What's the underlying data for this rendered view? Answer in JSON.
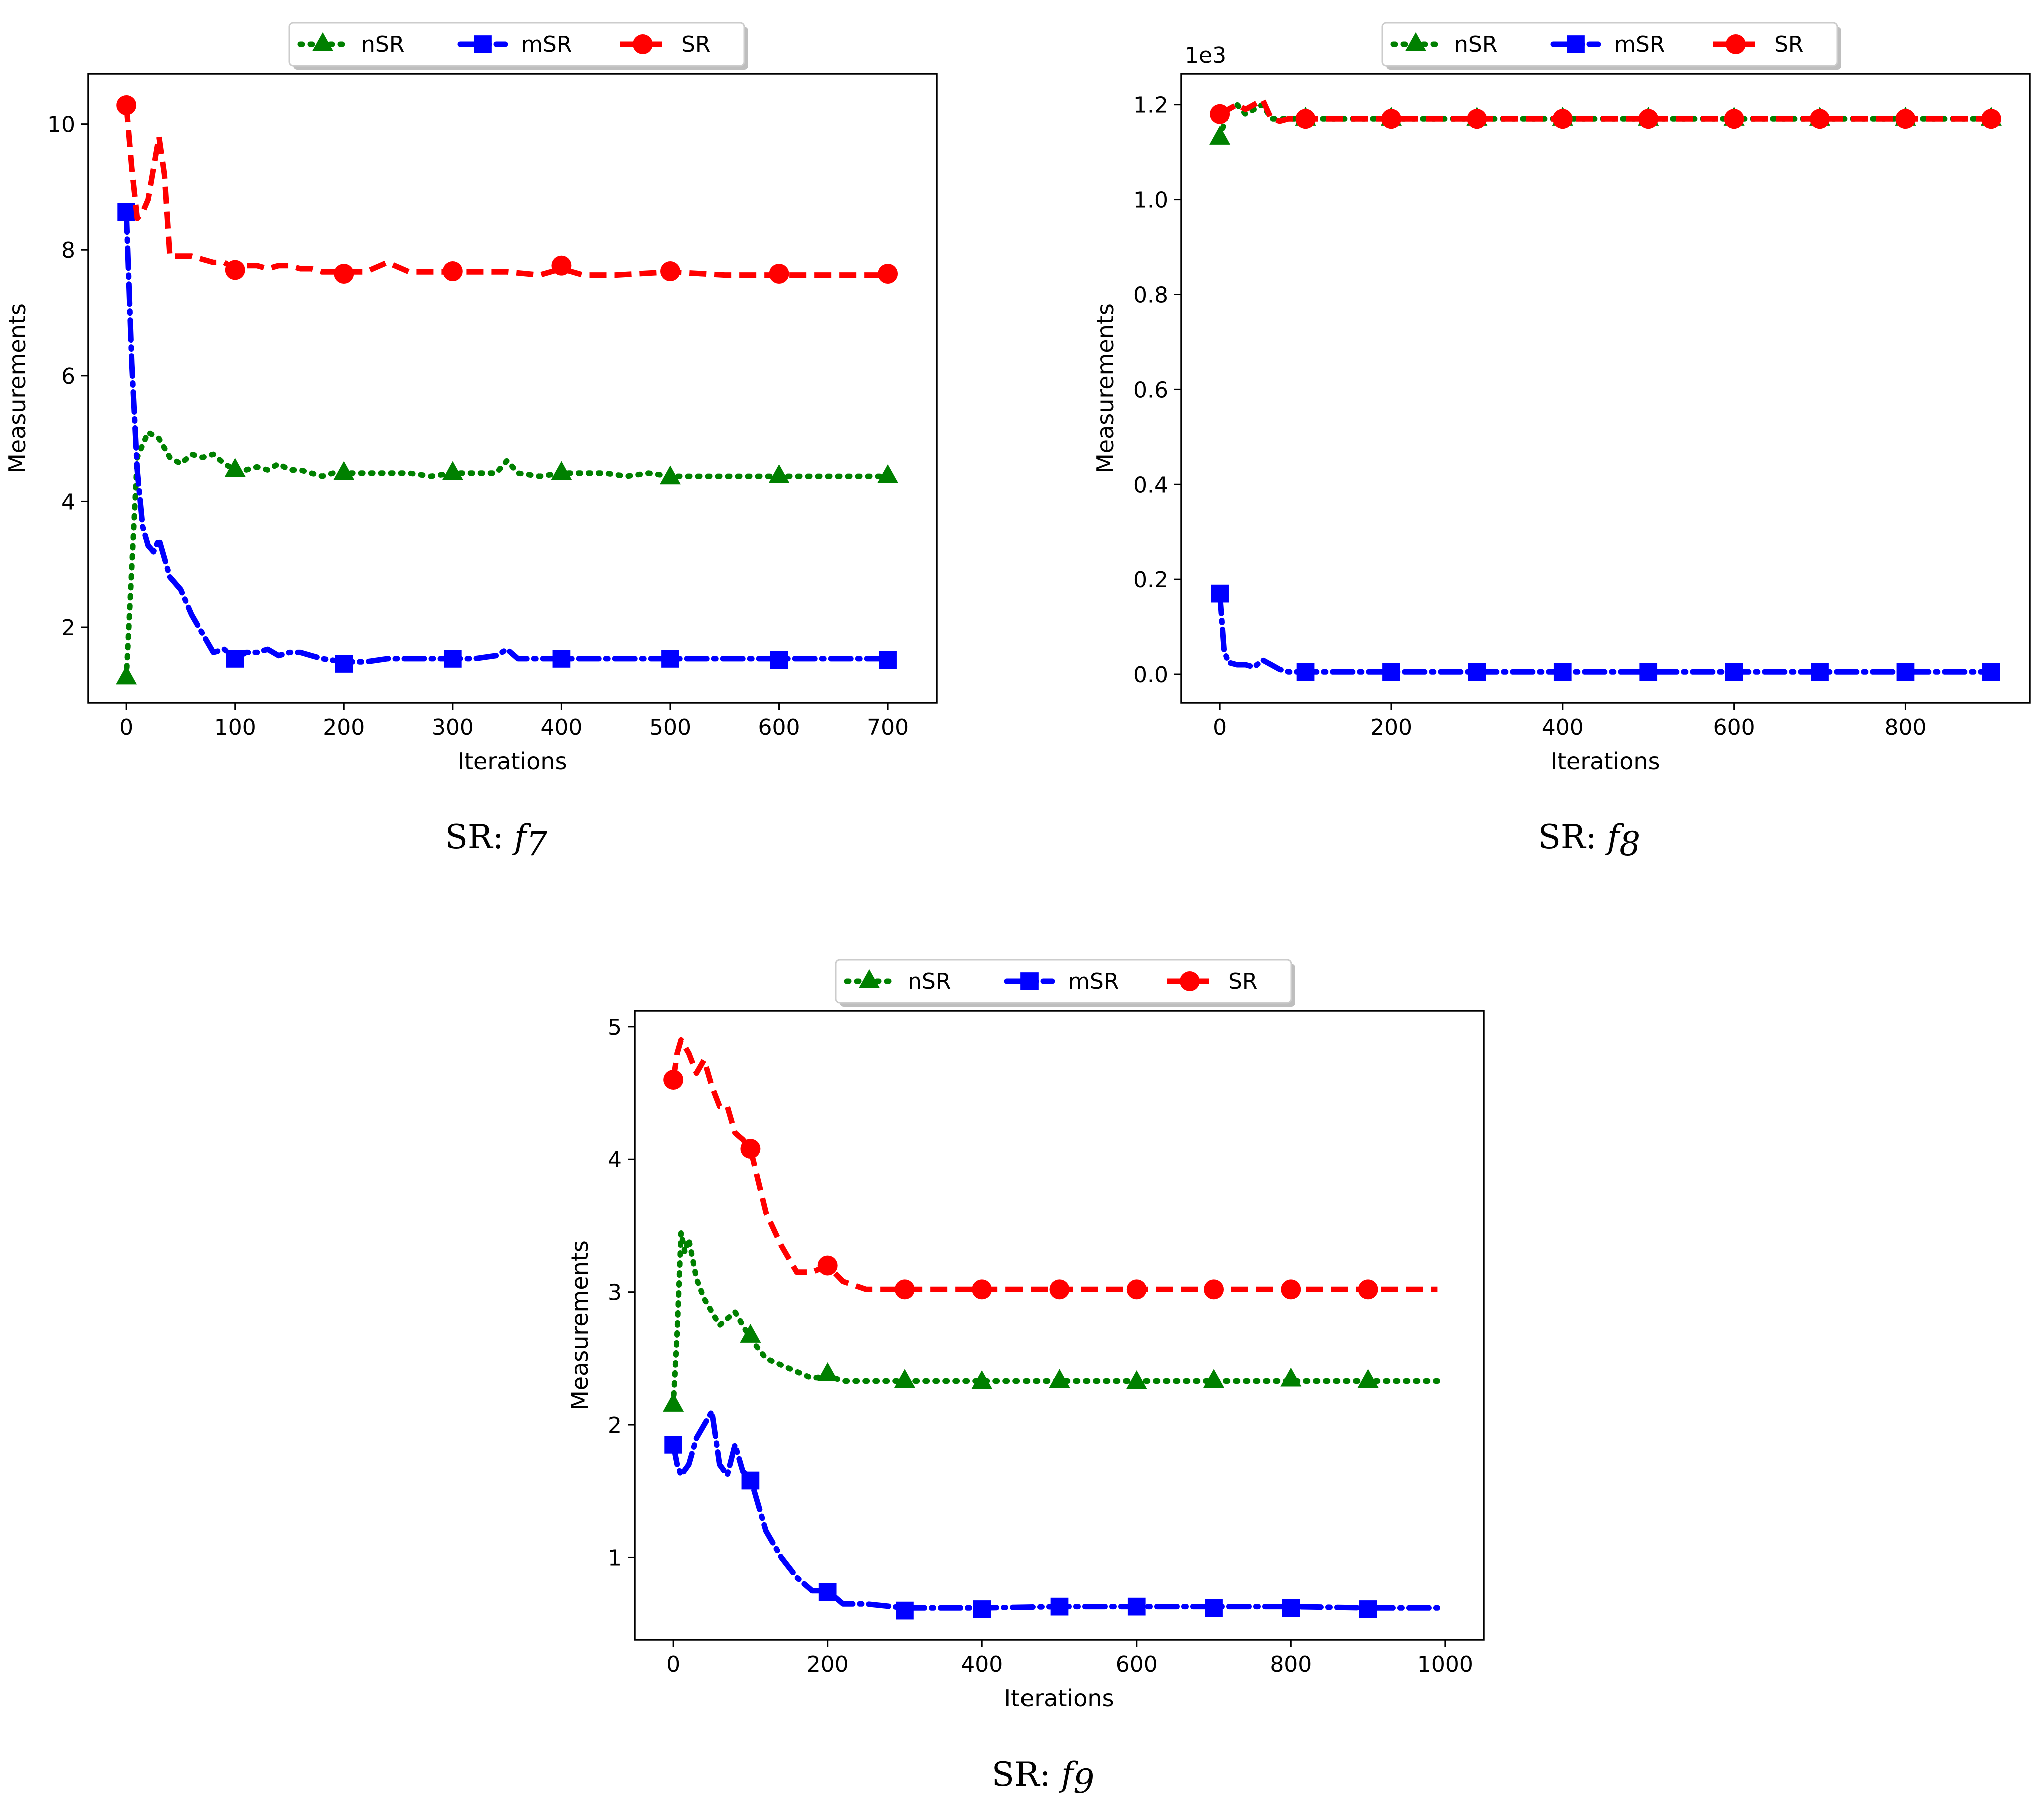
{
  "colors": {
    "nSR": "#008000",
    "mSR": "#0000ff",
    "SR": "#ff0000"
  },
  "chart_data": [
    {
      "type": "line",
      "caption_prefix": "SR: ",
      "caption_func": "f",
      "caption_sub": "7",
      "xlabel": "Iterations",
      "ylabel": "Measurements",
      "xlim": [
        -35,
        745
      ],
      "ylim": [
        0.8,
        10.8
      ],
      "xticks": [
        0,
        100,
        200,
        300,
        400,
        500,
        600,
        700
      ],
      "yticks": [
        2,
        4,
        6,
        8,
        10
      ],
      "ytick_labels": [
        "2",
        "4",
        "6",
        "8",
        "10"
      ],
      "offset_label": "",
      "legend": [
        "nSR",
        "mSR",
        "SR"
      ],
      "legend_position": "top-center",
      "series": [
        {
          "name": "nSR",
          "x": [
            0,
            10,
            20,
            30,
            40,
            50,
            60,
            70,
            80,
            90,
            100,
            110,
            120,
            130,
            140,
            150,
            160,
            170,
            180,
            190,
            200,
            220,
            240,
            260,
            280,
            300,
            320,
            340,
            350,
            360,
            380,
            400,
            420,
            440,
            460,
            480,
            500,
            550,
            600,
            650,
            700
          ],
          "values": [
            1.2,
            4.7,
            5.1,
            5.0,
            4.7,
            4.6,
            4.75,
            4.7,
            4.75,
            4.6,
            4.5,
            4.5,
            4.55,
            4.5,
            4.6,
            4.5,
            4.5,
            4.45,
            4.4,
            4.45,
            4.45,
            4.45,
            4.45,
            4.45,
            4.4,
            4.45,
            4.45,
            4.45,
            4.65,
            4.45,
            4.4,
            4.45,
            4.45,
            4.45,
            4.4,
            4.45,
            4.4,
            4.4,
            4.4,
            4.4,
            4.4
          ],
          "marker_x": [
            0,
            100,
            200,
            300,
            400,
            500,
            600,
            700
          ],
          "marker_values": [
            1.2,
            4.5,
            4.45,
            4.45,
            4.45,
            4.38,
            4.4,
            4.4
          ]
        },
        {
          "name": "mSR",
          "x": [
            0,
            5,
            10,
            15,
            20,
            25,
            30,
            35,
            40,
            50,
            60,
            70,
            80,
            90,
            100,
            110,
            120,
            130,
            140,
            150,
            160,
            170,
            180,
            200,
            220,
            240,
            260,
            280,
            300,
            320,
            340,
            350,
            360,
            400,
            450,
            500,
            550,
            600,
            650,
            700
          ],
          "values": [
            8.6,
            6.2,
            4.5,
            3.6,
            3.3,
            3.2,
            3.4,
            3.1,
            2.8,
            2.6,
            2.2,
            1.9,
            1.6,
            1.65,
            1.5,
            1.6,
            1.6,
            1.65,
            1.55,
            1.6,
            1.6,
            1.55,
            1.5,
            1.45,
            1.45,
            1.5,
            1.5,
            1.5,
            1.5,
            1.5,
            1.55,
            1.65,
            1.5,
            1.5,
            1.5,
            1.5,
            1.5,
            1.5,
            1.5,
            1.5
          ],
          "marker_x": [
            0,
            100,
            200,
            300,
            400,
            500,
            600,
            700
          ],
          "marker_values": [
            8.6,
            1.5,
            1.42,
            1.5,
            1.5,
            1.5,
            1.48,
            1.48
          ]
        },
        {
          "name": "SR",
          "x": [
            0,
            5,
            10,
            15,
            20,
            25,
            30,
            35,
            40,
            50,
            60,
            70,
            80,
            90,
            100,
            110,
            120,
            130,
            140,
            150,
            160,
            170,
            180,
            200,
            220,
            240,
            260,
            280,
            300,
            350,
            380,
            400,
            420,
            450,
            500,
            550,
            600,
            650,
            700
          ],
          "values": [
            10.3,
            9.3,
            8.5,
            8.6,
            8.8,
            9.3,
            9.8,
            9.2,
            7.9,
            7.9,
            7.9,
            7.85,
            7.8,
            7.8,
            7.7,
            7.75,
            7.75,
            7.7,
            7.75,
            7.75,
            7.7,
            7.7,
            7.65,
            7.65,
            7.65,
            7.8,
            7.65,
            7.65,
            7.65,
            7.65,
            7.6,
            7.7,
            7.6,
            7.6,
            7.65,
            7.6,
            7.6,
            7.6,
            7.6
          ],
          "marker_x": [
            0,
            100,
            200,
            300,
            400,
            500,
            600,
            700
          ],
          "marker_values": [
            10.3,
            7.68,
            7.62,
            7.66,
            7.75,
            7.66,
            7.62,
            7.62
          ]
        }
      ]
    },
    {
      "type": "line",
      "caption_prefix": "SR: ",
      "caption_func": "f",
      "caption_sub": "8",
      "xlabel": "Iterations",
      "ylabel": "Measurements",
      "xlim": [
        -45,
        945
      ],
      "ylim": [
        -0.06,
        1.265
      ],
      "xticks": [
        0,
        200,
        400,
        600,
        800
      ],
      "yticks": [
        0.0,
        0.2,
        0.4,
        0.6,
        0.8,
        1.0,
        1.2
      ],
      "ytick_labels": [
        "0.0",
        "0.2",
        "0.4",
        "0.6",
        "0.8",
        "1.0",
        "1.2"
      ],
      "offset_label": "1e3",
      "legend": [
        "nSR",
        "mSR",
        "SR"
      ],
      "legend_position": "top-center",
      "series": [
        {
          "name": "nSR",
          "x": [
            0,
            10,
            20,
            30,
            40,
            50,
            60,
            70,
            80,
            90,
            100,
            200,
            300,
            400,
            500,
            600,
            700,
            800,
            900
          ],
          "values": [
            1.13,
            1.19,
            1.2,
            1.18,
            1.19,
            1.2,
            1.17,
            1.17,
            1.17,
            1.17,
            1.17,
            1.17,
            1.17,
            1.17,
            1.17,
            1.17,
            1.17,
            1.17,
            1.17
          ],
          "marker_x": [
            0,
            100,
            200,
            300,
            400,
            500,
            600,
            700,
            800,
            900
          ],
          "marker_values": [
            1.13,
            1.17,
            1.17,
            1.17,
            1.17,
            1.17,
            1.17,
            1.17,
            1.17,
            1.17
          ]
        },
        {
          "name": "mSR",
          "x": [
            0,
            5,
            10,
            20,
            30,
            40,
            50,
            60,
            70,
            80,
            90,
            100,
            200,
            300,
            400,
            500,
            600,
            700,
            800,
            900
          ],
          "values": [
            0.17,
            0.05,
            0.025,
            0.02,
            0.02,
            0.015,
            0.03,
            0.02,
            0.01,
            0.005,
            0.005,
            0.005,
            0.005,
            0.005,
            0.005,
            0.005,
            0.005,
            0.005,
            0.005,
            0.005
          ],
          "marker_x": [
            0,
            100,
            200,
            300,
            400,
            500,
            600,
            700,
            800,
            900
          ],
          "marker_values": [
            0.17,
            0.005,
            0.005,
            0.005,
            0.005,
            0.005,
            0.005,
            0.005,
            0.005,
            0.005
          ]
        },
        {
          "name": "SR",
          "x": [
            0,
            10,
            20,
            30,
            40,
            50,
            60,
            70,
            80,
            90,
            100,
            200,
            300,
            400,
            500,
            600,
            700,
            800,
            900
          ],
          "values": [
            1.18,
            1.19,
            1.2,
            1.19,
            1.2,
            1.21,
            1.17,
            1.165,
            1.17,
            1.17,
            1.17,
            1.17,
            1.17,
            1.17,
            1.17,
            1.17,
            1.17,
            1.17,
            1.17
          ],
          "marker_x": [
            0,
            100,
            200,
            300,
            400,
            500,
            600,
            700,
            800,
            900
          ],
          "marker_values": [
            1.18,
            1.17,
            1.17,
            1.17,
            1.17,
            1.17,
            1.17,
            1.17,
            1.17,
            1.17
          ]
        }
      ]
    },
    {
      "type": "line",
      "caption_prefix": "SR: ",
      "caption_func": "f",
      "caption_sub": "9",
      "xlabel": "Iterations",
      "ylabel": "Measurements",
      "xlim": [
        -50,
        1050
      ],
      "ylim": [
        0.38,
        5.12
      ],
      "xticks": [
        0,
        200,
        400,
        600,
        800,
        1000
      ],
      "yticks": [
        1,
        2,
        3,
        4,
        5
      ],
      "ytick_labels": [
        "1",
        "2",
        "3",
        "4",
        "5"
      ],
      "offset_label": "",
      "legend": [
        "nSR",
        "mSR",
        "SR"
      ],
      "legend_position": "top-center",
      "series": [
        {
          "name": "nSR",
          "x": [
            0,
            5,
            10,
            15,
            20,
            30,
            40,
            50,
            60,
            70,
            80,
            90,
            100,
            120,
            140,
            160,
            180,
            200,
            220,
            250,
            300,
            400,
            500,
            600,
            700,
            800,
            900,
            990
          ],
          "values": [
            2.15,
            2.7,
            3.45,
            3.3,
            3.4,
            3.1,
            2.95,
            2.85,
            2.75,
            2.8,
            2.85,
            2.75,
            2.65,
            2.5,
            2.45,
            2.4,
            2.35,
            2.37,
            2.33,
            2.33,
            2.33,
            2.33,
            2.33,
            2.33,
            2.33,
            2.33,
            2.33,
            2.33
          ],
          "marker_x": [
            0,
            100,
            200,
            300,
            400,
            500,
            600,
            700,
            800,
            900
          ],
          "marker_values": [
            2.15,
            2.67,
            2.38,
            2.33,
            2.32,
            2.33,
            2.32,
            2.33,
            2.34,
            2.33
          ]
        },
        {
          "name": "mSR",
          "x": [
            0,
            5,
            10,
            20,
            30,
            40,
            50,
            60,
            70,
            80,
            90,
            100,
            120,
            140,
            160,
            180,
            200,
            220,
            250,
            300,
            400,
            500,
            600,
            700,
            800,
            900,
            990
          ],
          "values": [
            1.85,
            1.7,
            1.62,
            1.7,
            1.9,
            2.0,
            2.1,
            1.7,
            1.62,
            1.85,
            1.65,
            1.6,
            1.2,
            1.0,
            0.85,
            0.75,
            0.75,
            0.65,
            0.65,
            0.62,
            0.62,
            0.63,
            0.63,
            0.63,
            0.63,
            0.62,
            0.62
          ],
          "marker_x": [
            0,
            100,
            200,
            300,
            400,
            500,
            600,
            700,
            800,
            900
          ],
          "marker_values": [
            1.85,
            1.58,
            0.74,
            0.6,
            0.61,
            0.63,
            0.63,
            0.62,
            0.62,
            0.61
          ]
        },
        {
          "name": "SR",
          "x": [
            0,
            5,
            10,
            20,
            30,
            40,
            50,
            60,
            70,
            80,
            90,
            100,
            120,
            140,
            160,
            180,
            200,
            220,
            250,
            300,
            400,
            500,
            600,
            700,
            800,
            900,
            990
          ],
          "values": [
            4.6,
            4.8,
            4.9,
            4.8,
            4.65,
            4.75,
            4.55,
            4.4,
            4.4,
            4.2,
            4.15,
            4.08,
            3.6,
            3.35,
            3.15,
            3.15,
            3.2,
            3.08,
            3.02,
            3.02,
            3.02,
            3.02,
            3.02,
            3.02,
            3.02,
            3.02,
            3.02
          ],
          "marker_x": [
            0,
            100,
            200,
            300,
            400,
            500,
            600,
            700,
            800,
            900
          ],
          "marker_values": [
            4.6,
            4.08,
            3.2,
            3.02,
            3.02,
            3.02,
            3.02,
            3.02,
            3.02,
            3.02
          ]
        }
      ]
    }
  ]
}
